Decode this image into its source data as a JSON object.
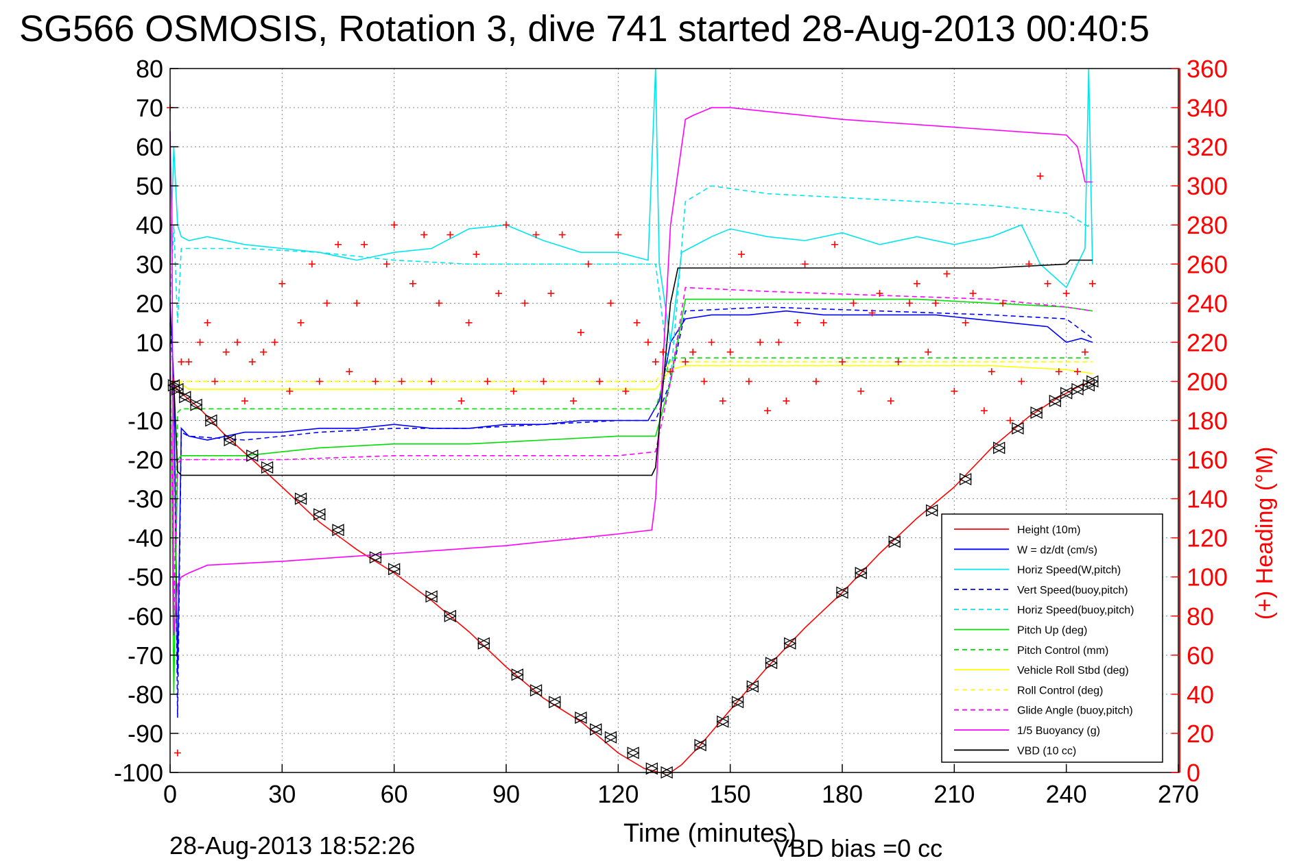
{
  "title": "SG566 OSMOSIS, Rotation 3, dive 741 started 28-Aug-2013 00:40:5",
  "footer": {
    "timestamp": "28-Aug-2013 18:52:26",
    "vbd_bias": "VBD bias =0 cc"
  },
  "colors": {
    "height": "#ff0000",
    "w": "#0000ff",
    "horiz_speed": "#00e5ee",
    "pitch": "#00dd00",
    "roll": "#ffff00",
    "glide": "#ff00ff",
    "buoyancy": "#ff00ff",
    "vbd": "#000000",
    "heading": "#ff0000"
  },
  "chart_data": {
    "type": "line",
    "title": "SG566 OSMOSIS, Rotation 3, dive 741 started 28-Aug-2013 00:40:5",
    "xlabel": "Time (minutes)",
    "ylabel": "",
    "y2label": "(+) Heading (°M)",
    "xlim": [
      0,
      270
    ],
    "ylim": [
      -100,
      80
    ],
    "y2lim": [
      0,
      360
    ],
    "grid": true,
    "legend_position": "bottom-right",
    "x_ticks": [
      "0",
      "30",
      "60",
      "90",
      "120",
      "150",
      "180",
      "210",
      "240",
      "270"
    ],
    "y_ticks": [
      "80",
      "70",
      "60",
      "50",
      "40",
      "30",
      "20",
      "10",
      "0",
      "-10",
      "-20",
      "-30",
      "-40",
      "-50",
      "-60",
      "-70",
      "-80",
      "-90",
      "-100"
    ],
    "y2_ticks": [
      "360",
      "340",
      "320",
      "300",
      "280",
      "260",
      "240",
      "220",
      "200",
      "180",
      "160",
      "140",
      "120",
      "100",
      "80",
      "60",
      "40",
      "20",
      "0"
    ],
    "legend": [
      {
        "label": "Height (10m)",
        "color": "#ff0000",
        "dash": false
      },
      {
        "label": "W = dz/dt (cm/s)",
        "color": "#0000ff",
        "dash": false
      },
      {
        "label": "Horiz Speed(W,pitch)",
        "color": "#00e5ee",
        "dash": false
      },
      {
        "label": "Vert Speed(buoy,pitch)",
        "color": "#0000ff",
        "dash": true
      },
      {
        "label": "Horiz Speed(buoy,pitch)",
        "color": "#00e5ee",
        "dash": true
      },
      {
        "label": "Pitch Up (deg)",
        "color": "#00dd00",
        "dash": false
      },
      {
        "label": "Pitch Control (mm)",
        "color": "#00dd00",
        "dash": true
      },
      {
        "label": "Vehicle Roll Stbd (deg)",
        "color": "#ffff00",
        "dash": false
      },
      {
        "label": "Roll Control (deg)",
        "color": "#ffff00",
        "dash": true
      },
      {
        "label": "Glide Angle (buoy,pitch)",
        "color": "#ff00ff",
        "dash": true
      },
      {
        "label": "1/5 Buoyancy (g)",
        "color": "#ff00ff",
        "dash": false
      },
      {
        "label": "VBD (10 cc)",
        "color": "#000000",
        "dash": false
      }
    ],
    "series": [
      {
        "name": "Height (10m)",
        "x": [
          0,
          1,
          3,
          8,
          15,
          22,
          30,
          40,
          50,
          60,
          70,
          80,
          90,
          100,
          110,
          120,
          127,
          131,
          134,
          137,
          142,
          150,
          160,
          170,
          180,
          190,
          200,
          210,
          220,
          230,
          238,
          244,
          247
        ],
        "y": [
          0,
          -1,
          -3,
          -7,
          -14,
          -20,
          -27,
          -36,
          -43,
          -49,
          -56,
          -64,
          -73,
          -81,
          -87,
          -95,
          -99,
          -100,
          -100,
          -98,
          -93,
          -84,
          -73,
          -63,
          -54,
          -44,
          -35,
          -27,
          -17,
          -9,
          -4,
          -1,
          0
        ]
      },
      {
        "name": "W = dz/dt (cm/s)",
        "x": [
          0,
          1,
          2,
          3,
          5,
          10,
          15,
          20,
          30,
          40,
          50,
          60,
          70,
          80,
          90,
          100,
          110,
          120,
          128,
          131,
          134,
          138,
          145,
          155,
          165,
          175,
          185,
          195,
          205,
          215,
          225,
          235,
          240,
          244,
          247
        ],
        "y": [
          20,
          0,
          -75,
          -12,
          -14,
          -15,
          -14,
          -13,
          -13,
          -12,
          -12,
          -11,
          -12,
          -12,
          -11,
          -11,
          -10,
          -10,
          -10,
          -5,
          10,
          16,
          17,
          17,
          18,
          17,
          17,
          17,
          17,
          16,
          15,
          14,
          10,
          11,
          10
        ]
      },
      {
        "name": "Horiz Speed(W,pitch)",
        "x": [
          0,
          1,
          2,
          3,
          5,
          10,
          20,
          30,
          40,
          50,
          60,
          70,
          80,
          90,
          100,
          110,
          120,
          128,
          130,
          131,
          134,
          137,
          145,
          150,
          160,
          170,
          180,
          190,
          200,
          210,
          220,
          228,
          233,
          240,
          245,
          246,
          247
        ],
        "y": [
          30,
          60,
          40,
          37,
          36,
          37,
          35,
          34,
          33,
          31,
          33,
          34,
          39,
          40,
          36,
          33,
          33,
          31,
          80,
          30,
          10,
          33,
          37,
          39,
          37,
          36,
          38,
          35,
          37,
          35,
          37,
          40,
          30,
          24,
          34,
          80,
          30
        ]
      },
      {
        "name": "Vert Speed(buoy,pitch)",
        "x": [
          0,
          1,
          2,
          3,
          5,
          20,
          40,
          60,
          80,
          100,
          120,
          130,
          134,
          138,
          160,
          190,
          220,
          240,
          247
        ],
        "y": [
          15,
          0,
          -86,
          -13,
          -14,
          -15,
          -13,
          -12,
          -12,
          -11,
          -10,
          -10,
          0,
          18,
          19,
          18,
          17,
          16,
          11
        ]
      },
      {
        "name": "Horiz Speed(buoy,pitch)",
        "x": [
          0,
          1,
          2,
          3,
          5,
          20,
          40,
          60,
          80,
          100,
          120,
          130,
          134,
          138,
          145,
          160,
          180,
          200,
          220,
          240,
          247
        ],
        "y": [
          20,
          40,
          15,
          34,
          34,
          34,
          33,
          31,
          30,
          30,
          30,
          30,
          0,
          46,
          50,
          48,
          47,
          46,
          45,
          43,
          39
        ]
      },
      {
        "name": "Pitch Up (deg)",
        "x": [
          0,
          1,
          2,
          3,
          5,
          20,
          40,
          60,
          80,
          100,
          120,
          130,
          134,
          138,
          160,
          180,
          200,
          220,
          240,
          247
        ],
        "y": [
          15,
          -80,
          -20,
          -19,
          -19,
          -19,
          -17,
          -16,
          -16,
          -15,
          -14,
          -14,
          0,
          21,
          21,
          21,
          21,
          20,
          19,
          18
        ]
      },
      {
        "name": "Pitch Control (mm)",
        "x": [
          0,
          1,
          2,
          3,
          5,
          30,
          60,
          90,
          120,
          130,
          134,
          138,
          160,
          190,
          220,
          240,
          247
        ],
        "y": [
          10,
          -60,
          -8,
          -7,
          -7,
          -7,
          -7,
          -7,
          -7,
          -7,
          6,
          6,
          6,
          6,
          6,
          6,
          6
        ]
      },
      {
        "name": "Vehicle Roll Stbd (deg)",
        "x": [
          0,
          2,
          5,
          10,
          30,
          60,
          90,
          120,
          130,
          134,
          138,
          160,
          190,
          220,
          240,
          247
        ],
        "y": [
          0,
          0,
          -2,
          -2,
          -2,
          -2,
          -2,
          -2,
          -2,
          3,
          4,
          4,
          4,
          4,
          3,
          2
        ]
      },
      {
        "name": "Roll Control (deg)",
        "x": [
          0,
          2,
          5,
          30,
          60,
          90,
          120,
          130,
          134,
          138,
          160,
          190,
          220,
          240,
          247
        ],
        "y": [
          0,
          0,
          0,
          0,
          0,
          0,
          0,
          0,
          5,
          5,
          5,
          5,
          5,
          5,
          5
        ]
      },
      {
        "name": "Glide Angle (buoy,pitch)",
        "x": [
          0,
          1,
          2,
          3,
          5,
          30,
          60,
          90,
          120,
          130,
          134,
          138,
          160,
          190,
          220,
          240,
          247
        ],
        "y": [
          10,
          -60,
          -21,
          -20,
          -20,
          -20,
          -19,
          -19,
          -19,
          -18,
          0,
          24,
          23,
          22,
          21,
          19,
          18
        ]
      },
      {
        "name": "1/5 Buoyancy (g)",
        "x": [
          0,
          0.5,
          1,
          2,
          3,
          5,
          10,
          30,
          60,
          90,
          120,
          129,
          130,
          134,
          138,
          140,
          145,
          150,
          180,
          210,
          240,
          243,
          245,
          246,
          247
        ],
        "y": [
          64,
          40,
          -65,
          -52,
          -50,
          -49,
          -47,
          -46,
          -44,
          -42,
          -39,
          -38,
          -30,
          40,
          67,
          68,
          70,
          70,
          67,
          65,
          63,
          60,
          51,
          51,
          51
        ]
      },
      {
        "name": "VBD (10 cc)",
        "x": [
          0,
          1,
          2,
          3,
          5,
          30,
          60,
          90,
          120,
          129,
          130,
          134,
          136,
          140,
          160,
          190,
          220,
          240,
          241,
          247
        ],
        "y": [
          0,
          0,
          -23,
          -24,
          -24,
          -24,
          -24,
          -24,
          -24,
          -24,
          -22,
          20,
          29,
          29,
          29,
          29,
          29,
          30,
          31,
          31
        ]
      }
    ],
    "heading_series": {
      "name": "(+) Heading",
      "x": [
        0,
        1,
        2,
        3,
        5,
        8,
        10,
        12,
        15,
        18,
        20,
        22,
        25,
        28,
        30,
        32,
        35,
        38,
        40,
        42,
        45,
        48,
        50,
        52,
        55,
        58,
        60,
        62,
        65,
        68,
        70,
        72,
        75,
        78,
        80,
        82,
        85,
        88,
        90,
        92,
        95,
        98,
        100,
        102,
        105,
        108,
        110,
        112,
        115,
        118,
        120,
        122,
        125,
        128,
        130,
        132,
        134,
        138,
        140,
        143,
        145,
        148,
        150,
        153,
        155,
        158,
        160,
        163,
        165,
        168,
        170,
        173,
        175,
        178,
        180,
        183,
        185,
        188,
        190,
        193,
        195,
        198,
        200,
        203,
        205,
        208,
        210,
        213,
        215,
        218,
        220,
        223,
        225,
        228,
        230,
        233,
        235,
        238,
        240,
        243,
        245,
        247
      ],
      "y": [
        340,
        200,
        10,
        210,
        210,
        220,
        230,
        200,
        215,
        220,
        190,
        210,
        215,
        220,
        250,
        195,
        230,
        260,
        200,
        240,
        270,
        205,
        240,
        270,
        200,
        260,
        280,
        200,
        250,
        275,
        200,
        240,
        275,
        190,
        230,
        265,
        200,
        245,
        280,
        195,
        240,
        275,
        200,
        245,
        275,
        190,
        225,
        260,
        200,
        240,
        275,
        195,
        230,
        220,
        210,
        215,
        205,
        210,
        215,
        200,
        220,
        190,
        215,
        265,
        200,
        220,
        185,
        220,
        190,
        230,
        260,
        200,
        230,
        270,
        210,
        240,
        195,
        235,
        245,
        190,
        210,
        240,
        250,
        215,
        240,
        255,
        195,
        230,
        245,
        185,
        205,
        240,
        180,
        200,
        260,
        305,
        250,
        205,
        245,
        205,
        215,
        250
      ]
    },
    "marker_series": {
      "name": "triangle markers",
      "x": [
        1,
        2,
        4,
        7,
        11,
        16,
        22,
        26,
        35,
        40,
        45,
        55,
        60,
        70,
        75,
        84,
        93,
        98,
        103,
        110,
        114,
        118,
        124,
        129,
        133,
        142,
        148,
        152,
        156,
        161,
        166,
        180,
        185,
        194,
        204,
        213,
        222,
        227,
        232,
        237,
        240,
        243,
        246,
        247
      ],
      "y": [
        -1,
        -2,
        -4,
        -6,
        -10,
        -15,
        -19,
        -22,
        -30,
        -34,
        -38,
        -45,
        -48,
        -55,
        -60,
        -67,
        -75,
        -79,
        -82,
        -86,
        -89,
        -91,
        -95,
        -99,
        -100,
        -93,
        -87,
        -82,
        -78,
        -72,
        -67,
        -54,
        -49,
        -41,
        -33,
        -25,
        -17,
        -12,
        -8,
        -5,
        -3,
        -2,
        -1,
        0
      ]
    }
  }
}
